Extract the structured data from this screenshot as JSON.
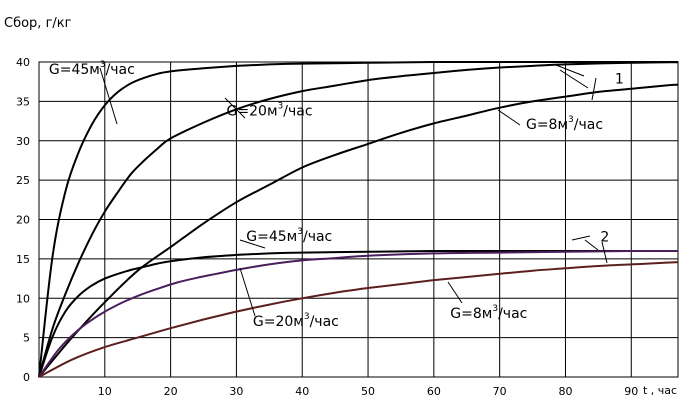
{
  "chart_data": {
    "type": "line",
    "ylabel": "Сбор, г/кг",
    "xlabel": "t , час",
    "xlim": [
      0,
      100
    ],
    "ylim": [
      0,
      40
    ],
    "x_ticks": [
      10,
      20,
      30,
      40,
      50,
      60,
      70,
      80,
      90
    ],
    "y_ticks": [
      0,
      5,
      10,
      15,
      20,
      25,
      30,
      35,
      40
    ],
    "grid": true,
    "series": [
      {
        "name": "G=45м3/час",
        "group": "1",
        "color": "#000000",
        "x": [
          0,
          2,
          4,
          6,
          8,
          10,
          12,
          14,
          16,
          18,
          20,
          25,
          30,
          35,
          40,
          50,
          60,
          70,
          80,
          90,
          100
        ],
        "y": [
          0,
          15,
          23.5,
          28.5,
          32,
          34.5,
          36.2,
          37.3,
          38,
          38.5,
          38.8,
          39.2,
          39.5,
          39.7,
          39.8,
          39.9,
          40,
          40,
          40,
          40,
          40
        ]
      },
      {
        "name": "G=20м3/час",
        "group": "1",
        "color": "#000000",
        "x": [
          0,
          2,
          4,
          6,
          8,
          10,
          12,
          14,
          16,
          18,
          20,
          25,
          30,
          35,
          40,
          45,
          50,
          55,
          60,
          65,
          70,
          75,
          80,
          90,
          100
        ],
        "y": [
          0,
          6,
          10.5,
          14.5,
          18,
          21,
          23.5,
          25.8,
          27.5,
          29,
          30.3,
          32.3,
          34,
          35.3,
          36.3,
          37,
          37.7,
          38.2,
          38.6,
          39,
          39.3,
          39.5,
          39.7,
          39.9,
          40
        ]
      },
      {
        "name": "G=8м3/час",
        "group": "1",
        "color": "#000000",
        "x": [
          0,
          5,
          10,
          15,
          20,
          25,
          30,
          35,
          40,
          45,
          50,
          55,
          60,
          65,
          70,
          75,
          80,
          85,
          90,
          95,
          100
        ],
        "y": [
          0,
          5,
          9.5,
          13.5,
          16.5,
          19.5,
          22.2,
          24.4,
          26.6,
          28.2,
          29.6,
          31,
          32.2,
          33.2,
          34.2,
          35,
          35.6,
          36.2,
          36.6,
          37,
          37.3
        ]
      },
      {
        "name": "G=45м3/час",
        "group": "2",
        "color": "#000000",
        "x": [
          0,
          2,
          4,
          6,
          8,
          10,
          12,
          14,
          16,
          18,
          20,
          25,
          30,
          35,
          40,
          50,
          60,
          70,
          80,
          90,
          100
        ],
        "y": [
          0,
          5,
          8.3,
          10.3,
          11.6,
          12.5,
          13.1,
          13.6,
          14,
          14.4,
          14.7,
          15.2,
          15.5,
          15.7,
          15.8,
          15.9,
          16,
          16,
          16,
          16,
          16
        ]
      },
      {
        "name": "G=20м3/час",
        "group": "2",
        "color": "#4a1f5c",
        "x": [
          0,
          3,
          6,
          9,
          12,
          15,
          18,
          21,
          24,
          27,
          30,
          35,
          40,
          45,
          50,
          60,
          70,
          80,
          90,
          100
        ],
        "y": [
          0,
          3.5,
          6,
          7.8,
          9.2,
          10.3,
          11.2,
          12,
          12.6,
          13.1,
          13.6,
          14.3,
          14.8,
          15.1,
          15.4,
          15.7,
          15.8,
          15.9,
          16,
          16
        ]
      },
      {
        "name": "G=8м3/час",
        "group": "2",
        "color": "#5c1f1f",
        "x": [
          0,
          5,
          10,
          15,
          20,
          25,
          30,
          35,
          40,
          45,
          50,
          55,
          60,
          65,
          70,
          75,
          80,
          85,
          90,
          95,
          100
        ],
        "y": [
          0,
          2.2,
          3.8,
          5,
          6.2,
          7.3,
          8.3,
          9.2,
          10,
          10.7,
          11.3,
          11.8,
          12.3,
          12.7,
          13.1,
          13.5,
          13.8,
          14.1,
          14.3,
          14.5,
          14.7
        ]
      }
    ],
    "annotations": [
      {
        "base": "G=45м",
        "sup": "3",
        "tail": "/час",
        "x": 1.5,
        "y": 38.5
      },
      {
        "base": "G=20м",
        "sup": "3",
        "tail": "/час",
        "x": 28.5,
        "y": 33.2
      },
      {
        "base": "G=8м",
        "sup": "3",
        "tail": "/час",
        "x": 74,
        "y": 31.5
      },
      {
        "base": "G=45м",
        "sup": "3",
        "tail": "/час",
        "x": 31.5,
        "y": 17.3
      },
      {
        "base": "G=20м",
        "sup": "3",
        "tail": "/час",
        "x": 32.5,
        "y": 6.5
      },
      {
        "base": "G=8м",
        "sup": "3",
        "tail": "/час",
        "x": 62.5,
        "y": 7.5
      }
    ],
    "group_labels": [
      {
        "label": "1",
        "x": 87.5,
        "y": 37.3
      },
      {
        "label": "2",
        "x": 85.3,
        "y": 17.2
      }
    ]
  }
}
